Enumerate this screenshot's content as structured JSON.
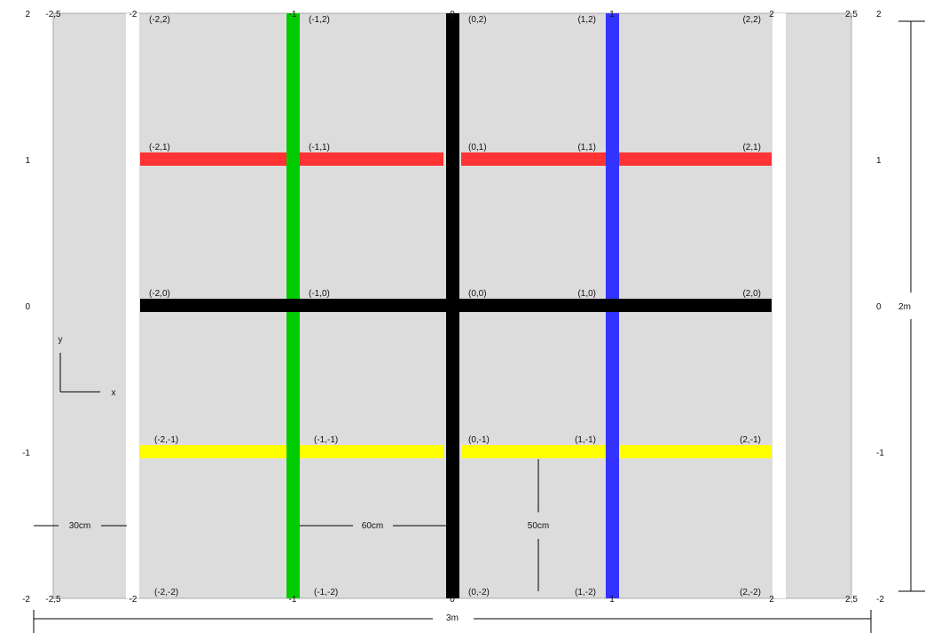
{
  "colors": {
    "background": "#dcdcdc",
    "gap": "#ffffff",
    "black": "#000000",
    "green": "#00cc00",
    "blue": "#3333ff",
    "red": "#ff3333",
    "yellow": "#ffff00"
  },
  "x_ticks": [
    {
      "value": -2.5,
      "label": "-2,5"
    },
    {
      "value": -2,
      "label": "-2"
    },
    {
      "value": -1,
      "label": "-1"
    },
    {
      "value": 0,
      "label": "0"
    },
    {
      "value": 1,
      "label": "1"
    },
    {
      "value": 2,
      "label": "2"
    },
    {
      "value": 2.5,
      "label": "2,5"
    }
  ],
  "y_ticks": [
    {
      "value": 2,
      "label": "2"
    },
    {
      "value": 1,
      "label": "1"
    },
    {
      "value": 0,
      "label": "0"
    },
    {
      "value": -1,
      "label": "-1"
    },
    {
      "value": -2,
      "label": "-2"
    }
  ],
  "vertical_lines": [
    {
      "x": -1,
      "color": "green",
      "name": "green-line-x-minus1"
    },
    {
      "x": 0,
      "color": "black",
      "name": "black-line-x0"
    },
    {
      "x": 1,
      "color": "blue",
      "name": "blue-line-x1"
    }
  ],
  "horizontal_lines": [
    {
      "y": 1,
      "color": "red",
      "name": "red-line-y1"
    },
    {
      "y": 0,
      "color": "black",
      "name": "black-line-y0"
    },
    {
      "y": -1,
      "color": "yellow",
      "name": "yellow-line-y-minus1"
    }
  ],
  "points": [
    {
      "x": -2,
      "y": 2,
      "label": "(-2,2)"
    },
    {
      "x": -1,
      "y": 2,
      "label": "(-1,2)"
    },
    {
      "x": 0,
      "y": 2,
      "label": "(0,2)"
    },
    {
      "x": 1,
      "y": 2,
      "label": "(1,2)"
    },
    {
      "x": 2,
      "y": 2,
      "label": "(2,2)"
    },
    {
      "x": -2,
      "y": 1,
      "label": "(-2,1)"
    },
    {
      "x": -1,
      "y": 1,
      "label": "(-1,1)"
    },
    {
      "x": 0,
      "y": 1,
      "label": "(0,1)"
    },
    {
      "x": 1,
      "y": 1,
      "label": "(1,1)"
    },
    {
      "x": 2,
      "y": 1,
      "label": "(2,1)"
    },
    {
      "x": -2,
      "y": 0,
      "label": "(-2,0)"
    },
    {
      "x": -1,
      "y": 0,
      "label": "(-1,0)"
    },
    {
      "x": 0,
      "y": 0,
      "label": "(0,0)"
    },
    {
      "x": 1,
      "y": 0,
      "label": "(1,0)"
    },
    {
      "x": 2,
      "y": 0,
      "label": "(2,0)"
    },
    {
      "x": -2,
      "y": -1,
      "label": "(-2,-1)"
    },
    {
      "x": -1,
      "y": -1,
      "label": "(-1,-1)"
    },
    {
      "x": 0,
      "y": -1,
      "label": "(0,-1)"
    },
    {
      "x": 1,
      "y": -1,
      "label": "(1,-1)"
    },
    {
      "x": 2,
      "y": -1,
      "label": "(2,-1)"
    },
    {
      "x": -2,
      "y": -2,
      "label": "(-2,-2)"
    },
    {
      "x": -1,
      "y": -2,
      "label": "(-1,-2)"
    },
    {
      "x": 0,
      "y": -2,
      "label": "(0,-2)"
    },
    {
      "x": 1,
      "y": -2,
      "label": "(1,-2)"
    },
    {
      "x": 2,
      "y": -2,
      "label": "(2,-2)"
    }
  ],
  "axis_indicator": {
    "x_label": "x",
    "y_label": "y"
  },
  "dimensions": {
    "margin_width": "30cm",
    "line_spacing": "60cm",
    "line_to_line_height": "50cm",
    "total_width": "3m",
    "total_height": "2m"
  }
}
